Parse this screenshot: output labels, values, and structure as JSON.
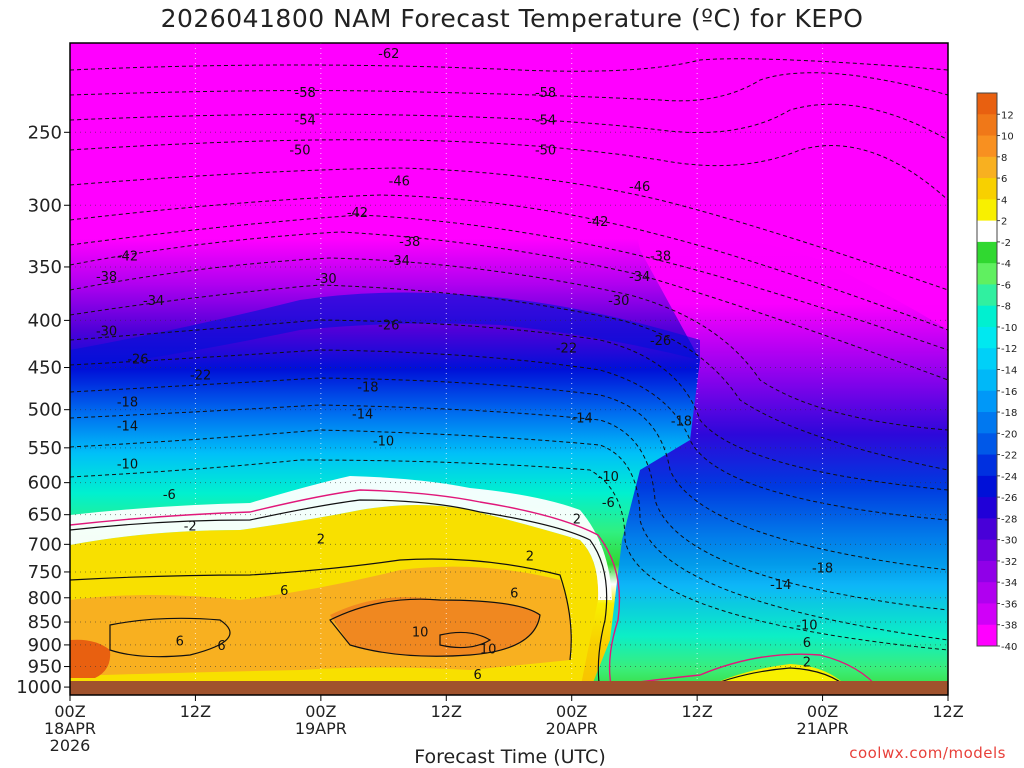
{
  "chart_data": {
    "type": "heatmap",
    "title": "2026041800 NAM Forecast Temperature (ºC) for KEPO",
    "xlabel": "Forecast Time (UTC)",
    "ylabel": "",
    "credit": "coolwx.com/models",
    "y_scale": "log-pressure",
    "ylim": [
      1020,
      200
    ],
    "xlim_hours": [
      0,
      84
    ],
    "y_ticks": [
      250,
      300,
      350,
      400,
      450,
      500,
      550,
      600,
      650,
      700,
      750,
      800,
      850,
      900,
      950,
      1000
    ],
    "x_ticks": [
      {
        "hour": 0,
        "lines": [
          "00Z",
          "18APR",
          "2026"
        ]
      },
      {
        "hour": 12,
        "lines": [
          "12Z"
        ]
      },
      {
        "hour": 24,
        "lines": [
          "00Z",
          "19APR"
        ]
      },
      {
        "hour": 36,
        "lines": [
          "12Z"
        ]
      },
      {
        "hour": 48,
        "lines": [
          "00Z",
          "20APR"
        ]
      },
      {
        "hour": 60,
        "lines": [
          "12Z"
        ]
      },
      {
        "hour": 72,
        "lines": [
          "00Z",
          "21APR"
        ]
      },
      {
        "hour": 84,
        "lines": [
          "12Z"
        ]
      }
    ],
    "colorbar": {
      "labels": [
        12,
        10,
        8,
        6,
        4,
        2,
        -2,
        -4,
        -6,
        -8,
        -10,
        -12,
        -14,
        -16,
        -18,
        -20,
        -22,
        -24,
        -26,
        -28,
        -30,
        -32,
        -34,
        -36,
        -38,
        -40
      ],
      "colors": [
        "#e86010",
        "#f07818",
        "#f89020",
        "#f8b020",
        "#f8d000",
        "#f8f000",
        "#ffffff",
        "#30d830",
        "#60f060",
        "#30f0a0",
        "#00f0d0",
        "#00e8f0",
        "#00d0f8",
        "#00b8f8",
        "#0098f8",
        "#0078f0",
        "#0058e8",
        "#0030e0",
        "#0010d8",
        "#2000d8",
        "#4800d8",
        "#7000e0",
        "#9000e8",
        "#b000f0",
        "#d000f8",
        "#ff00ff"
      ]
    },
    "contour_labels": [
      {
        "hour": 30.5,
        "p": 205,
        "v": -62
      },
      {
        "hour": 22.5,
        "p": 226,
        "v": -58
      },
      {
        "hour": 45.5,
        "p": 226,
        "v": -58
      },
      {
        "hour": 22.5,
        "p": 242,
        "v": -54
      },
      {
        "hour": 45.5,
        "p": 242,
        "v": -54
      },
      {
        "hour": 22,
        "p": 261,
        "v": -50
      },
      {
        "hour": 45.5,
        "p": 261,
        "v": -50
      },
      {
        "hour": 31.5,
        "p": 282,
        "v": -46
      },
      {
        "hour": 54.5,
        "p": 286,
        "v": -46
      },
      {
        "hour": 27.5,
        "p": 305,
        "v": -42
      },
      {
        "hour": 50.5,
        "p": 312,
        "v": -42
      },
      {
        "hour": 5.5,
        "p": 340,
        "v": -42
      },
      {
        "hour": 32.5,
        "p": 328,
        "v": -38
      },
      {
        "hour": 56.5,
        "p": 340,
        "v": -38
      },
      {
        "hour": 3.5,
        "p": 358,
        "v": -38
      },
      {
        "hour": 31.5,
        "p": 344,
        "v": -34
      },
      {
        "hour": 54.5,
        "p": 358,
        "v": -34
      },
      {
        "hour": 8,
        "p": 380,
        "v": -34
      },
      {
        "hour": 24.5,
        "p": 360,
        "v": -30
      },
      {
        "hour": 52.5,
        "p": 380,
        "v": -30
      },
      {
        "hour": 3.5,
        "p": 410,
        "v": -30
      },
      {
        "hour": 30.5,
        "p": 404,
        "v": -26
      },
      {
        "hour": 56.5,
        "p": 420,
        "v": -26
      },
      {
        "hour": 6.5,
        "p": 440,
        "v": -26
      },
      {
        "hour": 47.5,
        "p": 428,
        "v": -22
      },
      {
        "hour": 12.5,
        "p": 458,
        "v": -22
      },
      {
        "hour": 28.5,
        "p": 472,
        "v": -18
      },
      {
        "hour": 5.5,
        "p": 490,
        "v": -18
      },
      {
        "hour": 58.5,
        "p": 514,
        "v": -18
      },
      {
        "hour": 28,
        "p": 505,
        "v": -14
      },
      {
        "hour": 49,
        "p": 510,
        "v": -14
      },
      {
        "hour": 5.5,
        "p": 520,
        "v": -14
      },
      {
        "hour": 30,
        "p": 540,
        "v": -10
      },
      {
        "hour": 51.5,
        "p": 590,
        "v": -10
      },
      {
        "hour": 5.5,
        "p": 572,
        "v": -10
      },
      {
        "hour": 9.5,
        "p": 617,
        "v": -6
      },
      {
        "hour": 51.5,
        "p": 630,
        "v": -6
      },
      {
        "hour": 11.5,
        "p": 668,
        "v": -2
      },
      {
        "hour": 24,
        "p": 690,
        "v": 2
      },
      {
        "hour": 44,
        "p": 720,
        "v": 2
      },
      {
        "hour": 48.5,
        "p": 656,
        "v": 2
      },
      {
        "hour": 70.5,
        "p": 938,
        "v": 2
      },
      {
        "hour": 20.5,
        "p": 785,
        "v": 6
      },
      {
        "hour": 42.5,
        "p": 790,
        "v": 6
      },
      {
        "hour": 10.5,
        "p": 890,
        "v": 6
      },
      {
        "hour": 14.5,
        "p": 900,
        "v": 6
      },
      {
        "hour": 39,
        "p": 968,
        "v": 6
      },
      {
        "hour": 70.5,
        "p": 893,
        "v": 6
      },
      {
        "hour": 33.5,
        "p": 870,
        "v": 10
      },
      {
        "hour": 40,
        "p": 908,
        "v": 10
      },
      {
        "hour": 70.5,
        "p": 855,
        "v": -10
      },
      {
        "hour": 68,
        "p": 773,
        "v": -14
      },
      {
        "hour": 72,
        "p": 742,
        "v": -18
      }
    ]
  }
}
